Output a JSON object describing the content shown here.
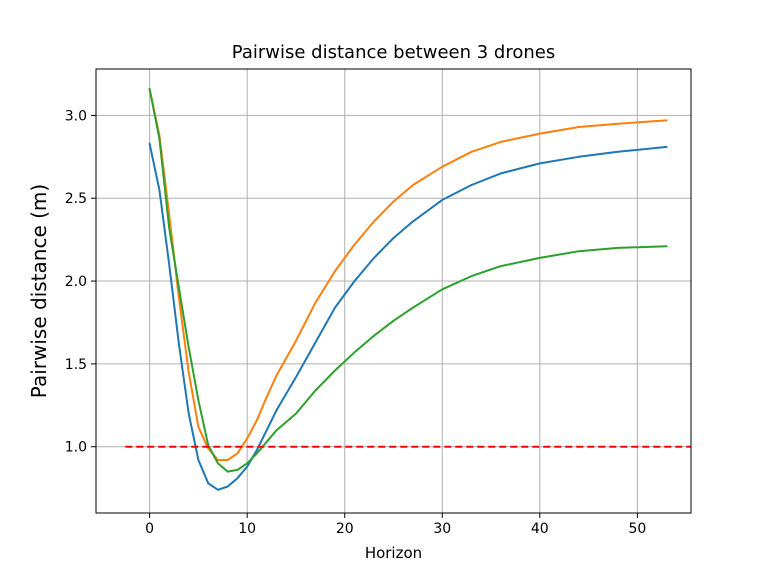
{
  "chart_data": {
    "type": "line",
    "title": "Pairwise distance between 3 drones",
    "xlabel": "Horizon",
    "ylabel": "Pairwise distance (m)",
    "xlim": [
      -5.5,
      55.5
    ],
    "ylim": [
      0.6,
      3.28
    ],
    "xticks": [
      0,
      10,
      20,
      30,
      40,
      50
    ],
    "yticks": [
      1.0,
      1.5,
      2.0,
      2.5,
      3.0
    ],
    "xtick_labels": [
      "0",
      "10",
      "20",
      "30",
      "40",
      "50"
    ],
    "ytick_labels": [
      "1.0",
      "1.5",
      "2.0",
      "2.5",
      "3.0"
    ],
    "grid": true,
    "legend": "none",
    "series": [
      {
        "color": "#1f77b4",
        "x": [
          0,
          1,
          2,
          3,
          4,
          5,
          6,
          7,
          8,
          9,
          10,
          11,
          12,
          13,
          15,
          17,
          19,
          21,
          23,
          25,
          27,
          30,
          33,
          36,
          40,
          44,
          48,
          53
        ],
        "y": [
          2.83,
          2.55,
          2.1,
          1.62,
          1.2,
          0.92,
          0.78,
          0.74,
          0.76,
          0.81,
          0.88,
          0.98,
          1.1,
          1.22,
          1.42,
          1.63,
          1.84,
          2.0,
          2.14,
          2.26,
          2.36,
          2.49,
          2.58,
          2.65,
          2.71,
          2.75,
          2.78,
          2.81
        ]
      },
      {
        "color": "#ff7f0e",
        "x": [
          0,
          1,
          2,
          3,
          4,
          5,
          6,
          7,
          8,
          9,
          10,
          11,
          12,
          13,
          15,
          17,
          19,
          21,
          23,
          25,
          27,
          30,
          33,
          36,
          40,
          44,
          48,
          53
        ],
        "y": [
          3.16,
          2.88,
          2.4,
          1.9,
          1.45,
          1.12,
          0.99,
          0.92,
          0.92,
          0.96,
          1.05,
          1.16,
          1.3,
          1.43,
          1.64,
          1.87,
          2.06,
          2.22,
          2.36,
          2.48,
          2.58,
          2.69,
          2.78,
          2.84,
          2.89,
          2.93,
          2.95,
          2.97
        ]
      },
      {
        "color": "#2ca02c",
        "x": [
          0,
          1,
          2,
          3,
          4,
          5,
          6,
          7,
          8,
          9,
          10,
          11,
          12,
          13,
          15,
          17,
          19,
          21,
          23,
          25,
          27,
          30,
          33,
          36,
          40,
          44,
          48,
          53
        ],
        "y": [
          3.16,
          2.86,
          2.32,
          1.96,
          1.6,
          1.28,
          1.01,
          0.9,
          0.85,
          0.86,
          0.9,
          0.96,
          1.03,
          1.1,
          1.2,
          1.34,
          1.46,
          1.57,
          1.67,
          1.76,
          1.84,
          1.95,
          2.03,
          2.09,
          2.14,
          2.18,
          2.2,
          2.21
        ]
      },
      {
        "color": "#ff0000",
        "dashed": true,
        "x": [
          -2.5,
          55.5
        ],
        "y": [
          1.0,
          1.0
        ]
      }
    ]
  }
}
